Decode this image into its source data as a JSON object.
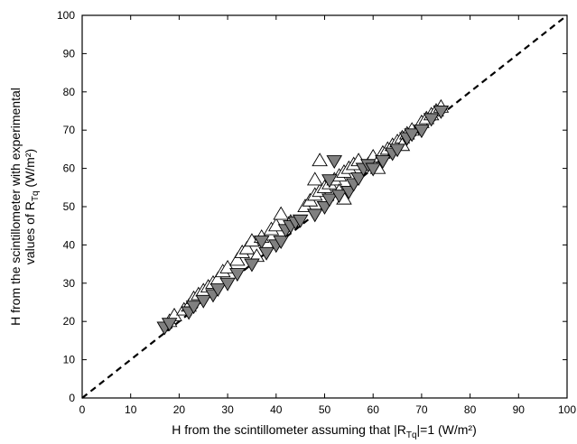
{
  "chart_data": {
    "type": "scatter",
    "xlabel": "H from the scintillometer assuming that |R",
    "xlabel_sub": "Tq",
    "xlabel_tail": "|=1 (W/m²)",
    "ylabel_line1": "H from the scintillometer with experimental",
    "ylabel_line2_pre": "values of R",
    "ylabel_line2_sub": "Tq",
    "ylabel_line2_post": " (W/m²)",
    "xlim": [
      0,
      100
    ],
    "ylim": [
      0,
      100
    ],
    "xticks": [
      "0",
      "10",
      "20",
      "30",
      "40",
      "50",
      "60",
      "70",
      "80",
      "90",
      "100"
    ],
    "yticks": [
      "0",
      "10",
      "20",
      "30",
      "40",
      "50",
      "60",
      "70",
      "80",
      "90",
      "100"
    ],
    "grid": false,
    "legend": "none",
    "reference_line": {
      "style": "dashed",
      "color": "#000000",
      "from": [
        0,
        0
      ],
      "to": [
        100,
        100
      ]
    },
    "series": [
      {
        "marker": "triangle-up",
        "fill": "#ffffff",
        "stroke": "#000000",
        "points": [
          [
            18,
            20
          ],
          [
            19,
            21.5
          ],
          [
            21,
            23
          ],
          [
            22,
            24
          ],
          [
            23,
            26
          ],
          [
            24,
            27
          ],
          [
            25,
            28
          ],
          [
            26,
            29
          ],
          [
            27,
            30
          ],
          [
            28,
            31
          ],
          [
            29,
            33
          ],
          [
            30,
            34
          ],
          [
            32,
            36
          ],
          [
            33,
            38
          ],
          [
            34,
            39
          ],
          [
            35,
            41
          ],
          [
            37,
            42
          ],
          [
            39,
            44
          ],
          [
            40,
            45
          ],
          [
            41,
            48
          ],
          [
            43,
            46
          ],
          [
            46,
            50
          ],
          [
            47,
            51.5
          ],
          [
            48,
            53
          ],
          [
            49,
            54
          ],
          [
            50,
            55
          ],
          [
            51,
            56
          ],
          [
            52,
            57
          ],
          [
            53,
            58
          ],
          [
            54,
            59
          ],
          [
            55,
            60
          ],
          [
            56,
            61
          ],
          [
            57,
            62
          ],
          [
            59,
            61
          ],
          [
            60,
            63
          ],
          [
            62,
            64
          ],
          [
            63,
            65
          ],
          [
            64,
            66
          ],
          [
            65,
            67
          ],
          [
            66,
            68
          ],
          [
            67,
            69
          ],
          [
            68,
            70
          ],
          [
            70,
            72
          ],
          [
            71,
            73
          ],
          [
            72,
            74
          ],
          [
            73,
            75
          ],
          [
            74,
            76
          ],
          [
            48,
            57
          ],
          [
            49,
            62
          ],
          [
            53,
            54
          ],
          [
            54,
            52
          ],
          [
            61,
            60
          ],
          [
            66,
            66
          ],
          [
            36,
            37
          ]
        ]
      },
      {
        "marker": "triangle-down",
        "fill": "#808080",
        "stroke": "#000000",
        "points": [
          [
            17,
            18.5
          ],
          [
            18,
            19.5
          ],
          [
            22,
            22.5
          ],
          [
            23,
            24
          ],
          [
            25,
            25.5
          ],
          [
            27,
            27
          ],
          [
            28,
            28.5
          ],
          [
            30,
            30
          ],
          [
            32,
            32.5
          ],
          [
            35,
            35
          ],
          [
            37,
            41
          ],
          [
            38,
            38
          ],
          [
            40,
            40
          ],
          [
            41,
            41
          ],
          [
            42,
            44
          ],
          [
            43,
            45
          ],
          [
            44,
            46
          ],
          [
            45,
            46.5
          ],
          [
            48,
            48
          ],
          [
            50,
            50
          ],
          [
            51,
            52
          ],
          [
            51,
            57
          ],
          [
            52,
            62
          ],
          [
            53,
            53
          ],
          [
            55,
            54
          ],
          [
            56,
            56
          ],
          [
            57,
            57.5
          ],
          [
            58,
            60
          ],
          [
            59,
            61
          ],
          [
            60,
            60
          ],
          [
            62,
            62
          ],
          [
            64,
            64
          ],
          [
            65,
            65
          ],
          [
            67,
            68
          ],
          [
            68,
            69
          ],
          [
            70,
            70
          ],
          [
            72,
            73
          ],
          [
            74,
            75
          ]
        ]
      }
    ]
  }
}
